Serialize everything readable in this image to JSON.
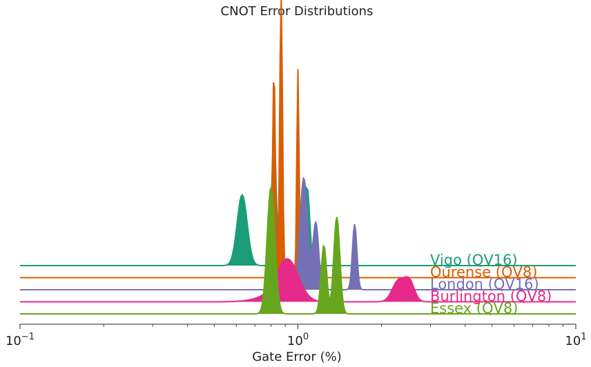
{
  "chart_data": {
    "type": "area",
    "title": "CNOT Error Distributions",
    "xlabel": "Gate Error (%)",
    "ylabel": "",
    "xscale": "log",
    "xlim": [
      0.1,
      10
    ],
    "grid": false,
    "legend": "inline labels at right of each ridge",
    "x_ticks": [
      {
        "value": 0.1,
        "base": "10",
        "exp": "−1"
      },
      {
        "value": 1,
        "base": "10",
        "exp": "0"
      },
      {
        "value": 10,
        "base": "10",
        "exp": "1"
      }
    ],
    "series": [
      {
        "name": "Vigo (QV16)",
        "color": "#1b9e77",
        "offset": 4,
        "peaks": [
          {
            "x": 0.63,
            "height": 0.95,
            "width": 0.018
          },
          {
            "x": 0.82,
            "height": 1.75,
            "width": 0.008
          },
          {
            "x": 1.08,
            "height": 1.05,
            "width": 0.009
          }
        ]
      },
      {
        "name": "Ourense (QV8)",
        "color": "#d95f02",
        "offset": 3,
        "peaks": [
          {
            "x": 0.82,
            "height": 2.8,
            "width": 0.005
          },
          {
            "x": 0.87,
            "height": 3.8,
            "width": 0.005
          },
          {
            "x": 1.0,
            "height": 2.8,
            "width": 0.004
          }
        ]
      },
      {
        "name": "London (QV16)",
        "color": "#7570b3",
        "offset": 2,
        "peaks": [
          {
            "x": 1.05,
            "height": 1.5,
            "width": 0.014
          },
          {
            "x": 1.16,
            "height": 0.9,
            "width": 0.01
          },
          {
            "x": 1.6,
            "height": 0.88,
            "width": 0.008
          }
        ]
      },
      {
        "name": "Burlington (QV8)",
        "color": "#e7298a",
        "offset": 1,
        "peaks": [
          {
            "x": 0.92,
            "height": 0.52,
            "width": 0.038
          },
          {
            "x": 0.82,
            "height": 0.08,
            "width": 0.06
          },
          {
            "x": 2.3,
            "height": 0.28,
            "width": 0.022
          },
          {
            "x": 2.52,
            "height": 0.26,
            "width": 0.018
          }
        ]
      },
      {
        "name": "Essex (QV8)",
        "color": "#66a61e",
        "offset": 0,
        "peaks": [
          {
            "x": 0.8,
            "height": 1.7,
            "width": 0.014
          },
          {
            "x": 1.24,
            "height": 0.92,
            "width": 0.01
          },
          {
            "x": 1.38,
            "height": 1.3,
            "width": 0.011
          }
        ]
      }
    ]
  }
}
